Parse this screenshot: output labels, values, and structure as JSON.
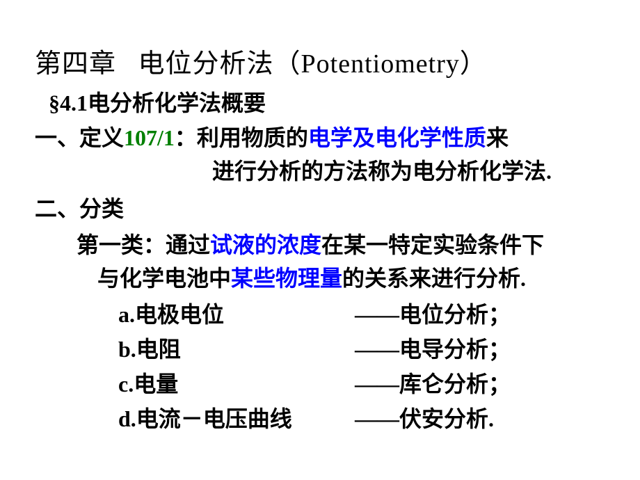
{
  "colors": {
    "text": "#000000",
    "highlight_blue": "#0000ff",
    "highlight_green": "#008000",
    "background": "#ffffff"
  },
  "typography": {
    "chapter_title_size_pt": 38,
    "body_size_pt": 32,
    "font_family_cn_serif": "SimSun",
    "font_family_cn_bold": "SimHei"
  },
  "chapter": {
    "prefix": "第四章",
    "title_cn": "电位分析法",
    "title_en": "Potentiometry"
  },
  "section41": {
    "number": "§4.1",
    "title": "电分析化学法概要"
  },
  "definition": {
    "label": "一、定义",
    "ref": "107/1",
    "pre": "：利用物质的",
    "blue1": "电学及电化学性质",
    "post1": "来",
    "line2": "进行分析的方法称为电分析化学法."
  },
  "classification": {
    "label": "二、分类",
    "cat1_pre": "第一类：通过",
    "cat1_blue1": "试液的浓度",
    "cat1_mid": "在某一特定实验条件下",
    "cat1_line2a": "与化学电池中",
    "cat1_blue2": "某些物理量",
    "cat1_line2b": "的关系来进行分析.",
    "items": [
      {
        "left": "a.电极电位",
        "right": "——电位分析；"
      },
      {
        "left": "b.电阻",
        "right": "——电导分析；"
      },
      {
        "left": "c.电量",
        "right": "——库仑分析；"
      },
      {
        "left": "d.电流－电压曲线",
        "right": "——伏安分析."
      }
    ]
  }
}
